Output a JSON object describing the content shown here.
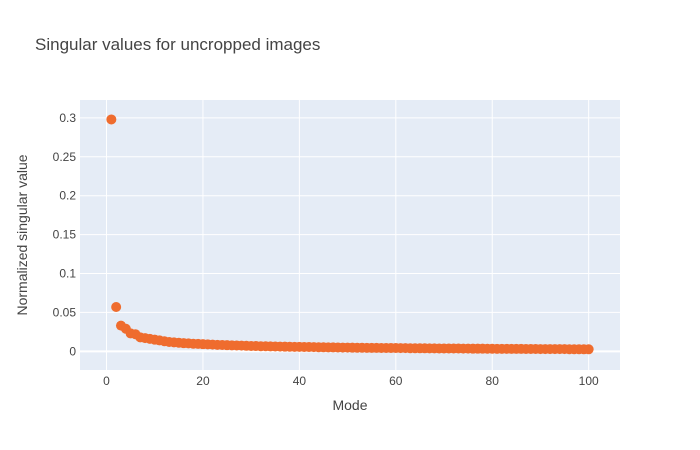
{
  "chart_data": {
    "type": "scatter",
    "title": "Singular values for uncropped images",
    "xlabel": "Mode",
    "ylabel": "Normalized singular value",
    "xlim": [
      -5.5,
      106.5
    ],
    "ylim": [
      -0.024,
      0.323
    ],
    "xticks": [
      0,
      20,
      40,
      60,
      80,
      100
    ],
    "xtick_labels": [
      "0",
      "20",
      "40",
      "60",
      "80",
      "100"
    ],
    "yticks": [
      0,
      0.05,
      0.1,
      0.15,
      0.2,
      0.25,
      0.3
    ],
    "ytick_labels": [
      "0",
      "0.05",
      "0.1",
      "0.15",
      "0.2",
      "0.25",
      "0.3"
    ],
    "grid": true,
    "colors": {
      "plot_bg": "#e5ecf6",
      "grid": "#ffffff",
      "marker": "#ef6c2e"
    },
    "series": [
      {
        "x": [
          1,
          2,
          3,
          4,
          5,
          6,
          7,
          8,
          9,
          10,
          11,
          12,
          13,
          14,
          15,
          16,
          17,
          18,
          19,
          20,
          21,
          22,
          23,
          24,
          25,
          26,
          27,
          28,
          29,
          30,
          31,
          32,
          33,
          34,
          35,
          36,
          37,
          38,
          39,
          40,
          41,
          42,
          43,
          44,
          45,
          46,
          47,
          48,
          49,
          50,
          51,
          52,
          53,
          54,
          55,
          56,
          57,
          58,
          59,
          60,
          61,
          62,
          63,
          64,
          65,
          66,
          67,
          68,
          69,
          70,
          71,
          72,
          73,
          74,
          75,
          76,
          77,
          78,
          79,
          80,
          81,
          82,
          83,
          84,
          85,
          86,
          87,
          88,
          89,
          90,
          91,
          92,
          93,
          94,
          95,
          96,
          97,
          98,
          99,
          100
        ],
        "values": [
          0.298,
          0.057,
          0.033,
          0.029,
          0.023,
          0.022,
          0.018,
          0.017,
          0.016,
          0.015,
          0.014,
          0.013,
          0.012,
          0.0115,
          0.011,
          0.0105,
          0.0102,
          0.0098,
          0.0095,
          0.0092,
          0.0089,
          0.0086,
          0.0083,
          0.0081,
          0.0079,
          0.0077,
          0.0075,
          0.0073,
          0.0071,
          0.0069,
          0.0068,
          0.0066,
          0.0065,
          0.0063,
          0.0062,
          0.0061,
          0.006,
          0.0059,
          0.0058,
          0.0057,
          0.0056,
          0.0055,
          0.0054,
          0.0053,
          0.0052,
          0.0051,
          0.005,
          0.0049,
          0.0048,
          0.0048,
          0.0047,
          0.0046,
          0.0046,
          0.0045,
          0.0044,
          0.0044,
          0.0043,
          0.0043,
          0.0042,
          0.0042,
          0.0041,
          0.0041,
          0.004,
          0.004,
          0.0039,
          0.0039,
          0.0038,
          0.0038,
          0.0037,
          0.0037,
          0.0036,
          0.0036,
          0.0036,
          0.0035,
          0.0035,
          0.0034,
          0.0034,
          0.0034,
          0.0033,
          0.0033,
          0.0032,
          0.0032,
          0.0032,
          0.0031,
          0.0031,
          0.0031,
          0.003,
          0.003,
          0.003,
          0.0029,
          0.0029,
          0.0029,
          0.0028,
          0.0028,
          0.0028,
          0.0027,
          0.0027,
          0.0027,
          0.0026,
          0.0026
        ]
      }
    ]
  }
}
